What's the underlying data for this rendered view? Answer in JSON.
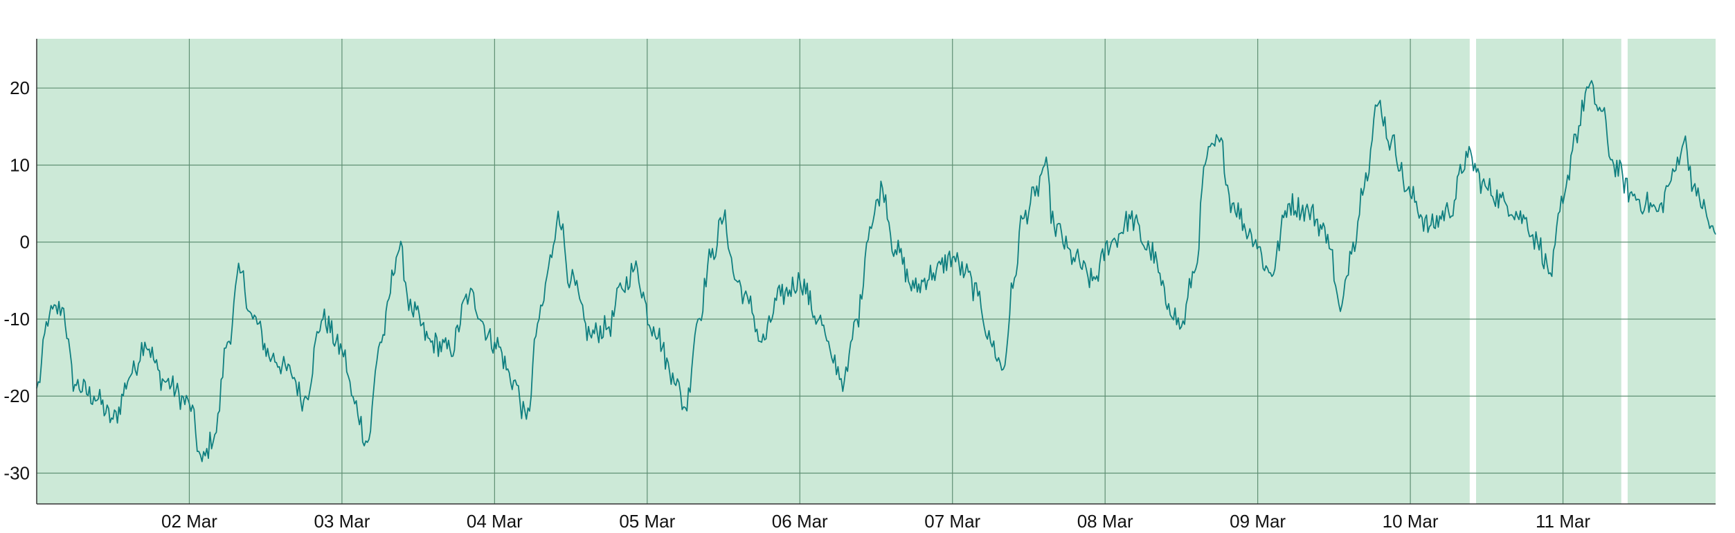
{
  "chart_data": {
    "type": "line",
    "title": "",
    "xlabel": "",
    "ylabel": "",
    "x_range": [
      "01 Mar 00:00",
      "12 Mar 00:00"
    ],
    "ylim": [
      -34,
      26.4
    ],
    "grid": true,
    "legend": "none",
    "x_ticks": [
      "02 Mar",
      "03 Mar",
      "04 Mar",
      "05 Mar",
      "06 Mar",
      "07 Mar",
      "08 Mar",
      "09 Mar",
      "10 Mar",
      "11 Mar"
    ],
    "y_ticks": [
      "20",
      "10",
      "0",
      "-10",
      "-20",
      "-30"
    ],
    "gaps": [
      [
        "10 Mar 09:20",
        "10 Mar 10:20"
      ],
      [
        "11 Mar 09:10",
        "11 Mar 10:10"
      ]
    ],
    "series": [
      {
        "color": "#0f7f80",
        "points": [
          [
            "01 Mar 00:00",
            -19
          ],
          [
            "01 Mar 02:00",
            -9.5
          ],
          [
            "01 Mar 04:00",
            -8.5
          ],
          [
            "01 Mar 06:00",
            -18.5
          ],
          [
            "01 Mar 09:00",
            -20
          ],
          [
            "01 Mar 12:00",
            -23
          ],
          [
            "01 Mar 15:00",
            -17
          ],
          [
            "01 Mar 17:00",
            -13
          ],
          [
            "01 Mar 20:00",
            -18
          ],
          [
            "02 Mar 00:00",
            -21
          ],
          [
            "02 Mar 02:00",
            -28.5
          ],
          [
            "02 Mar 04:00",
            -25
          ],
          [
            "02 Mar 06:00",
            -13
          ],
          [
            "02 Mar 08:00",
            -4
          ],
          [
            "02 Mar 10:00",
            -10
          ],
          [
            "02 Mar 13:00",
            -15
          ],
          [
            "02 Mar 16:00",
            -17
          ],
          [
            "02 Mar 18:00",
            -20.5
          ],
          [
            "02 Mar 21:00",
            -10
          ],
          [
            "03 Mar 00:00",
            -14
          ],
          [
            "03 Mar 02:00",
            -21
          ],
          [
            "03 Mar 04:00",
            -26
          ],
          [
            "03 Mar 06:00",
            -13
          ],
          [
            "03 Mar 09:00",
            -1
          ],
          [
            "03 Mar 11:00",
            -9
          ],
          [
            "03 Mar 14:00",
            -13
          ],
          [
            "03 Mar 17:00",
            -14
          ],
          [
            "03 Mar 20:00",
            -7
          ],
          [
            "04 Mar 00:00",
            -13
          ],
          [
            "04 Mar 03:00",
            -18
          ],
          [
            "04 Mar 05:00",
            -23
          ],
          [
            "04 Mar 07:00",
            -10
          ],
          [
            "04 Mar 09:00",
            -2
          ],
          [
            "04 Mar 10:00",
            4
          ],
          [
            "04 Mar 12:00",
            -5
          ],
          [
            "04 Mar 15:00",
            -12
          ],
          [
            "04 Mar 18:00",
            -11
          ],
          [
            "04 Mar 20:00",
            -6
          ],
          [
            "04 Mar 22:00",
            -3.5
          ],
          [
            "05 Mar 01:00",
            -11
          ],
          [
            "05 Mar 04:00",
            -17
          ],
          [
            "05 Mar 06:00",
            -21.5
          ],
          [
            "05 Mar 08:00",
            -10
          ],
          [
            "05 Mar 10:00",
            -2
          ],
          [
            "05 Mar 12:00",
            3
          ],
          [
            "05 Mar 14:00",
            -5
          ],
          [
            "05 Mar 16:00",
            -8
          ],
          [
            "05 Mar 18:00",
            -13
          ],
          [
            "05 Mar 21:00",
            -7
          ],
          [
            "06 Mar 00:00",
            -5
          ],
          [
            "06 Mar 03:00",
            -10
          ],
          [
            "06 Mar 05:00",
            -15
          ],
          [
            "06 Mar 07:00",
            -18
          ],
          [
            "06 Mar 09:00",
            -10
          ],
          [
            "06 Mar 11:00",
            2
          ],
          [
            "06 Mar 13:00",
            7
          ],
          [
            "06 Mar 15:00",
            -1
          ],
          [
            "06 Mar 18:00",
            -6
          ],
          [
            "06 Mar 21:00",
            -4
          ],
          [
            "07 Mar 00:00",
            -2
          ],
          [
            "07 Mar 02:00",
            -4
          ],
          [
            "07 Mar 04:00",
            -7
          ],
          [
            "07 Mar 06:00",
            -13
          ],
          [
            "07 Mar 08:00",
            -16.5
          ],
          [
            "07 Mar 09:30",
            -6
          ],
          [
            "07 Mar 11:00",
            3
          ],
          [
            "07 Mar 13:00",
            6
          ],
          [
            "07 Mar 14:30",
            10
          ],
          [
            "07 Mar 16:00",
            2
          ],
          [
            "07 Mar 19:00",
            -2
          ],
          [
            "07 Mar 22:00",
            -5
          ],
          [
            "08 Mar 01:00",
            0
          ],
          [
            "08 Mar 04:00",
            3
          ],
          [
            "08 Mar 07:00",
            -1
          ],
          [
            "08 Mar 10:00",
            -8
          ],
          [
            "08 Mar 12:00",
            -11
          ],
          [
            "08 Mar 14:00",
            -4
          ],
          [
            "08 Mar 16:00",
            11
          ],
          [
            "08 Mar 18:00",
            13
          ],
          [
            "08 Mar 20:00",
            5
          ],
          [
            "08 Mar 23:00",
            1
          ],
          [
            "09 Mar 02:00",
            -4
          ],
          [
            "09 Mar 05:00",
            5
          ],
          [
            "09 Mar 08:00",
            4
          ],
          [
            "09 Mar 11:00",
            1
          ],
          [
            "09 Mar 13:00",
            -9
          ],
          [
            "09 Mar 15:00",
            0
          ],
          [
            "09 Mar 17:00",
            9
          ],
          [
            "09 Mar 19:00",
            18
          ],
          [
            "09 Mar 21:00",
            13
          ],
          [
            "10 Mar 00:00",
            6
          ],
          [
            "10 Mar 03:00",
            2
          ],
          [
            "10 Mar 06:00",
            4
          ],
          [
            "10 Mar 09:00",
            11
          ],
          [
            "10 Mar 12:00",
            7
          ],
          [
            "10 Mar 15:00",
            5
          ],
          [
            "10 Mar 18:00",
            3
          ],
          [
            "10 Mar 20:00",
            0
          ],
          [
            "10 Mar 22:00",
            -4
          ],
          [
            "11 Mar 00:00",
            5
          ],
          [
            "11 Mar 02:00",
            14
          ],
          [
            "11 Mar 04:00",
            20
          ],
          [
            "11 Mar 06:00",
            17
          ],
          [
            "11 Mar 08:00",
            10
          ],
          [
            "11 Mar 11:00",
            6
          ],
          [
            "11 Mar 13:00",
            5
          ],
          [
            "11 Mar 15:00",
            4
          ],
          [
            "11 Mar 17:00",
            8
          ],
          [
            "11 Mar 19:00",
            13
          ],
          [
            "11 Mar 21:00",
            6
          ],
          [
            "12 Mar 00:00",
            1
          ]
        ]
      }
    ]
  }
}
